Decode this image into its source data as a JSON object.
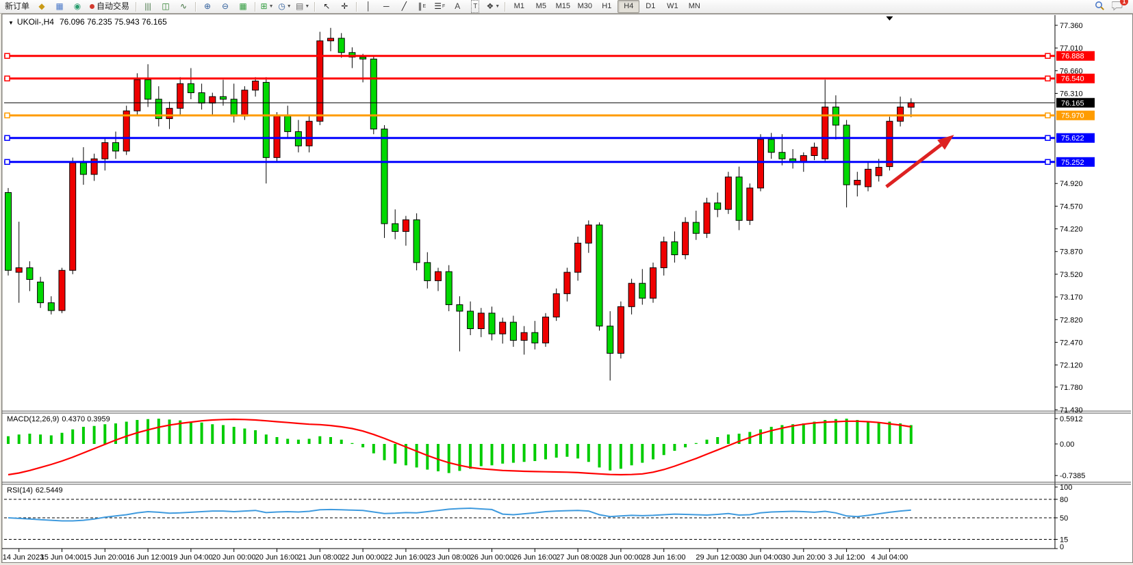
{
  "titlebar": {
    "symbol_period": "UKOil-,H4",
    "ohlc": "76.096 76.235 75.943 76.165"
  },
  "notifications": {
    "count": "1"
  },
  "toolbar": {
    "groups": [
      {
        "items": [
          {
            "type": "btn",
            "label": "新订单",
            "name": "new-order-button"
          },
          {
            "type": "icon",
            "glyph": "◆",
            "color": "#c99a17",
            "name": "new-chart-icon"
          },
          {
            "type": "icon",
            "glyph": "▦",
            "color": "#4a78c8",
            "name": "data-window-icon"
          },
          {
            "type": "icon",
            "glyph": "◉",
            "color": "#2a9d6f",
            "name": "signals-icon"
          },
          {
            "type": "autotrade",
            "label": "自动交易",
            "name": "autotrading-button"
          }
        ]
      },
      {
        "items": [
          {
            "type": "icon",
            "glyph": "|||",
            "color": "#3b6e3b",
            "name": "bar-chart-icon"
          },
          {
            "type": "icon",
            "glyph": "◫",
            "color": "#2a7d2a",
            "name": "candlestick-chart-icon"
          },
          {
            "type": "icon",
            "glyph": "∿",
            "color": "#3b6e3b",
            "name": "line-chart-icon"
          }
        ]
      },
      {
        "items": [
          {
            "type": "icon",
            "glyph": "⊕",
            "color": "#33619d",
            "name": "zoom-in-icon"
          },
          {
            "type": "icon",
            "glyph": "⊖",
            "color": "#33619d",
            "name": "zoom-out-icon"
          },
          {
            "type": "icon",
            "glyph": "▦",
            "color": "#2f9b3c",
            "name": "tile-windows-icon"
          }
        ]
      },
      {
        "items": [
          {
            "type": "icon-dd",
            "glyph": "⊞",
            "color": "#2f9b3c",
            "name": "add-indicator-icon"
          },
          {
            "type": "icon-dd",
            "glyph": "◷",
            "color": "#33619d",
            "name": "period-selector-icon"
          },
          {
            "type": "icon-dd",
            "glyph": "▤",
            "color": "#6b6b6b",
            "name": "template-icon"
          }
        ]
      },
      {
        "items": [
          {
            "type": "icon",
            "glyph": "↖",
            "color": "#222",
            "name": "cursor-icon"
          },
          {
            "type": "icon",
            "glyph": "✛",
            "color": "#222",
            "name": "crosshair-icon"
          }
        ]
      },
      {
        "items": [
          {
            "type": "icon",
            "glyph": "│",
            "color": "#222",
            "name": "vertical-line-icon"
          },
          {
            "type": "icon",
            "glyph": "─",
            "color": "#222",
            "name": "horizontal-line-icon"
          },
          {
            "type": "icon",
            "glyph": "╱",
            "color": "#222",
            "name": "trendline-icon"
          },
          {
            "type": "icon",
            "glyph": "∥",
            "sub": "E",
            "color": "#222",
            "name": "channel-icon"
          },
          {
            "type": "icon",
            "glyph": "☰",
            "sub": "F",
            "color": "#222",
            "name": "fibonacci-icon"
          },
          {
            "type": "icon",
            "glyph": "A",
            "color": "#444",
            "name": "text-icon"
          },
          {
            "type": "iconT",
            "glyph": "T",
            "color": "#444",
            "name": "text-label-icon"
          },
          {
            "type": "icon-dd",
            "glyph": "❖",
            "color": "#444",
            "name": "arrows-icon"
          }
        ]
      },
      {
        "items": [
          {
            "type": "tf",
            "label": "M1",
            "name": "timeframe-m1"
          },
          {
            "type": "tf",
            "label": "M5",
            "name": "timeframe-m5"
          },
          {
            "type": "tf",
            "label": "M15",
            "name": "timeframe-m15"
          },
          {
            "type": "tf",
            "label": "M30",
            "name": "timeframe-m30"
          },
          {
            "type": "tf",
            "label": "H1",
            "name": "timeframe-h1"
          },
          {
            "type": "tf",
            "label": "H4",
            "active": true,
            "name": "timeframe-h4"
          },
          {
            "type": "tf",
            "label": "D1",
            "name": "timeframe-d1"
          },
          {
            "type": "tf",
            "label": "W1",
            "name": "timeframe-w1"
          },
          {
            "type": "tf",
            "label": "MN",
            "name": "timeframe-mn"
          }
        ]
      }
    ]
  },
  "chart_data": [
    {
      "id": "main",
      "type": "candlestick",
      "symbol": "UKOil-",
      "period": "H4",
      "title": "UKOil-,H4 76.096 76.235 75.943 76.165",
      "ylim": [
        71.43,
        77.52
      ],
      "y_ticks": [
        77.36,
        77.01,
        76.66,
        76.31,
        74.92,
        74.57,
        74.22,
        73.87,
        73.52,
        73.17,
        72.82,
        72.47,
        72.12,
        71.78,
        71.43
      ],
      "current_price": 76.165,
      "up_color": "#ee0000",
      "down_color": "#00d800",
      "levels": [
        {
          "price": 76.888,
          "color": "#ff0000",
          "label": "76.888",
          "name": "resistance-line-76888"
        },
        {
          "price": 76.54,
          "color": "#ff0000",
          "label": "76.540",
          "name": "resistance-line-76540"
        },
        {
          "price": 75.97,
          "color": "#ff9c00",
          "label": "75.970",
          "name": "pivot-line-75970"
        },
        {
          "price": 75.622,
          "color": "#0000ff",
          "label": "75.622",
          "name": "support-line-75622"
        },
        {
          "price": 75.252,
          "color": "#0000ff",
          "label": "75.252",
          "name": "support-line-75252"
        }
      ],
      "current_label": "76.165",
      "candles": [
        [
          74.78,
          74.85,
          73.5,
          73.58
        ],
        [
          73.55,
          74.33,
          73.08,
          73.62
        ],
        [
          73.62,
          73.72,
          73.26,
          73.44
        ],
        [
          73.4,
          73.48,
          73.0,
          73.08
        ],
        [
          73.08,
          73.18,
          72.9,
          72.96
        ],
        [
          72.96,
          73.62,
          72.92,
          73.58
        ],
        [
          73.58,
          75.32,
          73.52,
          75.24
        ],
        [
          75.24,
          75.48,
          74.9,
          75.06
        ],
        [
          75.06,
          75.38,
          74.96,
          75.3
        ],
        [
          75.3,
          75.62,
          75.12,
          75.55
        ],
        [
          75.55,
          75.72,
          75.3,
          75.42
        ],
        [
          75.42,
          76.12,
          75.36,
          76.04
        ],
        [
          76.04,
          76.62,
          75.96,
          76.52
        ],
        [
          76.52,
          76.76,
          76.1,
          76.22
        ],
        [
          76.22,
          76.42,
          75.8,
          75.92
        ],
        [
          75.92,
          76.18,
          75.76,
          76.08
        ],
        [
          76.08,
          76.56,
          75.98,
          76.46
        ],
        [
          76.46,
          76.7,
          76.22,
          76.32
        ],
        [
          76.32,
          76.46,
          76.06,
          76.16
        ],
        [
          76.16,
          76.32,
          75.96,
          76.26
        ],
        [
          76.26,
          76.52,
          76.12,
          76.22
        ],
        [
          76.22,
          76.46,
          75.86,
          75.96
        ],
        [
          75.96,
          76.42,
          75.9,
          76.36
        ],
        [
          76.36,
          76.56,
          76.26,
          76.5
        ],
        [
          76.48,
          76.56,
          74.92,
          75.32
        ],
        [
          75.32,
          76.02,
          75.26,
          75.96
        ],
        [
          75.96,
          76.12,
          75.62,
          75.72
        ],
        [
          75.72,
          75.9,
          75.4,
          75.5
        ],
        [
          75.5,
          75.96,
          75.4,
          75.88
        ],
        [
          75.88,
          77.26,
          75.82,
          77.12
        ],
        [
          77.12,
          77.32,
          76.96,
          77.16
        ],
        [
          77.16,
          77.24,
          76.86,
          76.94
        ],
        [
          76.94,
          77.02,
          76.7,
          76.87
        ],
        [
          76.87,
          76.92,
          76.48,
          76.84
        ],
        [
          76.84,
          76.9,
          75.68,
          75.76
        ],
        [
          75.76,
          75.82,
          74.08,
          74.3
        ],
        [
          74.3,
          74.52,
          74.06,
          74.18
        ],
        [
          74.18,
          74.42,
          73.96,
          74.36
        ],
        [
          74.36,
          74.46,
          73.58,
          73.7
        ],
        [
          73.7,
          73.86,
          73.3,
          73.42
        ],
        [
          73.42,
          73.62,
          73.26,
          73.56
        ],
        [
          73.56,
          73.66,
          72.95,
          73.05
        ],
        [
          73.05,
          73.18,
          72.33,
          72.95
        ],
        [
          72.95,
          73.1,
          72.58,
          72.68
        ],
        [
          72.68,
          73.0,
          72.55,
          72.92
        ],
        [
          72.92,
          73.02,
          72.5,
          72.6
        ],
        [
          72.6,
          72.85,
          72.45,
          72.78
        ],
        [
          72.78,
          72.88,
          72.4,
          72.5
        ],
        [
          72.5,
          72.72,
          72.28,
          72.62
        ],
        [
          72.62,
          72.8,
          72.36,
          72.46
        ],
        [
          72.46,
          72.92,
          72.4,
          72.86
        ],
        [
          72.86,
          73.3,
          72.8,
          73.22
        ],
        [
          73.22,
          73.62,
          73.1,
          73.55
        ],
        [
          73.55,
          74.1,
          73.42,
          74.0
        ],
        [
          74.0,
          74.35,
          73.85,
          74.28
        ],
        [
          74.28,
          74.32,
          72.65,
          72.72
        ],
        [
          72.72,
          72.95,
          71.88,
          72.3
        ],
        [
          72.3,
          73.1,
          72.22,
          73.02
        ],
        [
          73.02,
          73.45,
          72.9,
          73.38
        ],
        [
          73.38,
          73.6,
          73.05,
          73.15
        ],
        [
          73.15,
          73.7,
          73.08,
          73.62
        ],
        [
          73.62,
          74.1,
          73.5,
          74.02
        ],
        [
          74.02,
          74.18,
          73.7,
          73.82
        ],
        [
          73.82,
          74.4,
          73.75,
          74.32
        ],
        [
          74.32,
          74.5,
          74.05,
          74.15
        ],
        [
          74.15,
          74.7,
          74.08,
          74.62
        ],
        [
          74.62,
          74.78,
          74.4,
          74.52
        ],
        [
          74.52,
          75.1,
          74.45,
          75.02
        ],
        [
          75.02,
          75.18,
          74.2,
          74.35
        ],
        [
          74.35,
          74.92,
          74.28,
          74.85
        ],
        [
          74.85,
          75.68,
          74.8,
          75.6
        ],
        [
          75.6,
          75.7,
          75.3,
          75.4
        ],
        [
          75.4,
          75.68,
          75.2,
          75.3
        ],
        [
          75.3,
          75.45,
          75.15,
          75.25
        ],
        [
          75.25,
          75.4,
          75.1,
          75.35
        ],
        [
          75.35,
          75.55,
          75.28,
          75.48
        ],
        [
          75.3,
          76.52,
          75.25,
          76.1
        ],
        [
          76.1,
          76.28,
          75.6,
          75.82
        ],
        [
          75.82,
          75.9,
          74.55,
          74.9
        ],
        [
          74.9,
          75.1,
          74.72,
          74.97
        ],
        [
          74.87,
          75.25,
          74.8,
          75.14
        ],
        [
          75.04,
          75.3,
          74.95,
          75.17
        ],
        [
          75.18,
          75.95,
          75.12,
          75.88
        ],
        [
          75.88,
          76.26,
          75.8,
          76.1
        ],
        [
          76.096,
          76.235,
          75.943,
          76.165
        ]
      ],
      "annotation_arrow": {
        "from_bar": 81.7,
        "from_price": 74.87,
        "to_bar": 88.0,
        "to_price": 75.67,
        "color": "#dd2222",
        "name": "trend-arrow"
      },
      "scroll_marker_bar": 82
    },
    {
      "id": "macd",
      "type": "bar",
      "label": "MACD(12,26,9)",
      "values_text": "0.4370 0.3959",
      "ylim": [
        -0.7385,
        0.5912
      ],
      "y_ticks": [
        0.5912,
        0.0,
        -0.7385
      ],
      "hist_color": "#00cc00",
      "signal_color": "#ff0000",
      "histogram": [
        0.18,
        0.22,
        0.24,
        0.22,
        0.2,
        0.26,
        0.34,
        0.4,
        0.42,
        0.46,
        0.48,
        0.52,
        0.56,
        0.58,
        0.59,
        0.57,
        0.55,
        0.52,
        0.5,
        0.46,
        0.44,
        0.4,
        0.36,
        0.32,
        0.22,
        0.16,
        0.12,
        0.1,
        0.12,
        0.18,
        0.16,
        0.1,
        0.02,
        -0.08,
        -0.22,
        -0.38,
        -0.46,
        -0.5,
        -0.55,
        -0.6,
        -0.64,
        -0.68,
        -0.63,
        -0.58,
        -0.52,
        -0.5,
        -0.46,
        -0.44,
        -0.42,
        -0.4,
        -0.36,
        -0.32,
        -0.3,
        -0.34,
        -0.42,
        -0.55,
        -0.62,
        -0.58,
        -0.5,
        -0.44,
        -0.36,
        -0.26,
        -0.16,
        -0.08,
        0.02,
        0.1,
        0.16,
        0.22,
        0.24,
        0.28,
        0.34,
        0.4,
        0.44,
        0.46,
        0.48,
        0.52,
        0.56,
        0.58,
        0.59,
        0.56,
        0.52,
        0.5,
        0.52,
        0.48,
        0.44
      ],
      "signal": [
        -0.72,
        -0.68,
        -0.62,
        -0.55,
        -0.48,
        -0.4,
        -0.31,
        -0.21,
        -0.11,
        -0.01,
        0.09,
        0.18,
        0.26,
        0.33,
        0.39,
        0.44,
        0.48,
        0.51,
        0.54,
        0.56,
        0.57,
        0.575,
        0.57,
        0.56,
        0.54,
        0.52,
        0.5,
        0.48,
        0.46,
        0.45,
        0.43,
        0.4,
        0.36,
        0.3,
        0.22,
        0.13,
        0.03,
        -0.07,
        -0.17,
        -0.27,
        -0.36,
        -0.44,
        -0.5,
        -0.55,
        -0.58,
        -0.6,
        -0.62,
        -0.63,
        -0.64,
        -0.645,
        -0.65,
        -0.655,
        -0.66,
        -0.67,
        -0.685,
        -0.7,
        -0.715,
        -0.72,
        -0.715,
        -0.7,
        -0.66,
        -0.6,
        -0.52,
        -0.43,
        -0.34,
        -0.24,
        -0.14,
        -0.04,
        0.06,
        0.15,
        0.24,
        0.31,
        0.37,
        0.42,
        0.46,
        0.49,
        0.51,
        0.52,
        0.53,
        0.53,
        0.52,
        0.5,
        0.47,
        0.44,
        0.4
      ]
    },
    {
      "id": "rsi",
      "type": "line",
      "label": "RSI(14)",
      "value_text": "62.5449",
      "ylim": [
        0,
        100
      ],
      "y_ticks": [
        100,
        80,
        50,
        15,
        0
      ],
      "dashed_levels": [
        80,
        50,
        15
      ],
      "line_color": "#3e9ade",
      "values": [
        50,
        49,
        48,
        47,
        46,
        45,
        45,
        46,
        48,
        51,
        53,
        55,
        58,
        60,
        59,
        57.5,
        58,
        59,
        60,
        61,
        61,
        60,
        61,
        62,
        58.5,
        59.5,
        60,
        59.5,
        60.5,
        63,
        63.5,
        63,
        62.5,
        62,
        59.5,
        57,
        57.5,
        58.5,
        58,
        60,
        62,
        64,
        65,
        65.5,
        64.5,
        63.5,
        56,
        55,
        56.5,
        58,
        60,
        61,
        61.5,
        62,
        61,
        55,
        52,
        53,
        54,
        53.5,
        54,
        55,
        56,
        55.5,
        55,
        54.5,
        55.5,
        57,
        54.5,
        55,
        58,
        59.5,
        60,
        60.5,
        60,
        59,
        60.5,
        58,
        53,
        52,
        54,
        56.5,
        59,
        61,
        62.5
      ]
    }
  ],
  "time_axis": {
    "ticks": [
      {
        "label": "14 Jun 2023",
        "bar": 1
      },
      {
        "label": "15 Jun 04:00",
        "bar": 5
      },
      {
        "label": "15 Jun 20:00",
        "bar": 9
      },
      {
        "label": "16 Jun 12:00",
        "bar": 13
      },
      {
        "label": "19 Jun 04:00",
        "bar": 17
      },
      {
        "label": "20 Jun 00:00",
        "bar": 21
      },
      {
        "label": "20 Jun 16:00",
        "bar": 25
      },
      {
        "label": "21 Jun 08:00",
        "bar": 29
      },
      {
        "label": "22 Jun 00:00",
        "bar": 33
      },
      {
        "label": "22 Jun 16:00",
        "bar": 37
      },
      {
        "label": "23 Jun 08:00",
        "bar": 41
      },
      {
        "label": "26 Jun 00:00",
        "bar": 45
      },
      {
        "label": "26 Jun 16:00",
        "bar": 49
      },
      {
        "label": "27 Jun 08:00",
        "bar": 53
      },
      {
        "label": "28 Jun 00:00",
        "bar": 57
      },
      {
        "label": "28 Jun 16:00",
        "bar": 61
      },
      {
        "label": "29 Jun 12:00",
        "bar": 66
      },
      {
        "label": "30 Jun 04:00",
        "bar": 70
      },
      {
        "label": "30 Jun 20:00",
        "bar": 74
      },
      {
        "label": "3 Jul 12:00",
        "bar": 78
      },
      {
        "label": "4 Jul 04:00",
        "bar": 82
      }
    ]
  }
}
